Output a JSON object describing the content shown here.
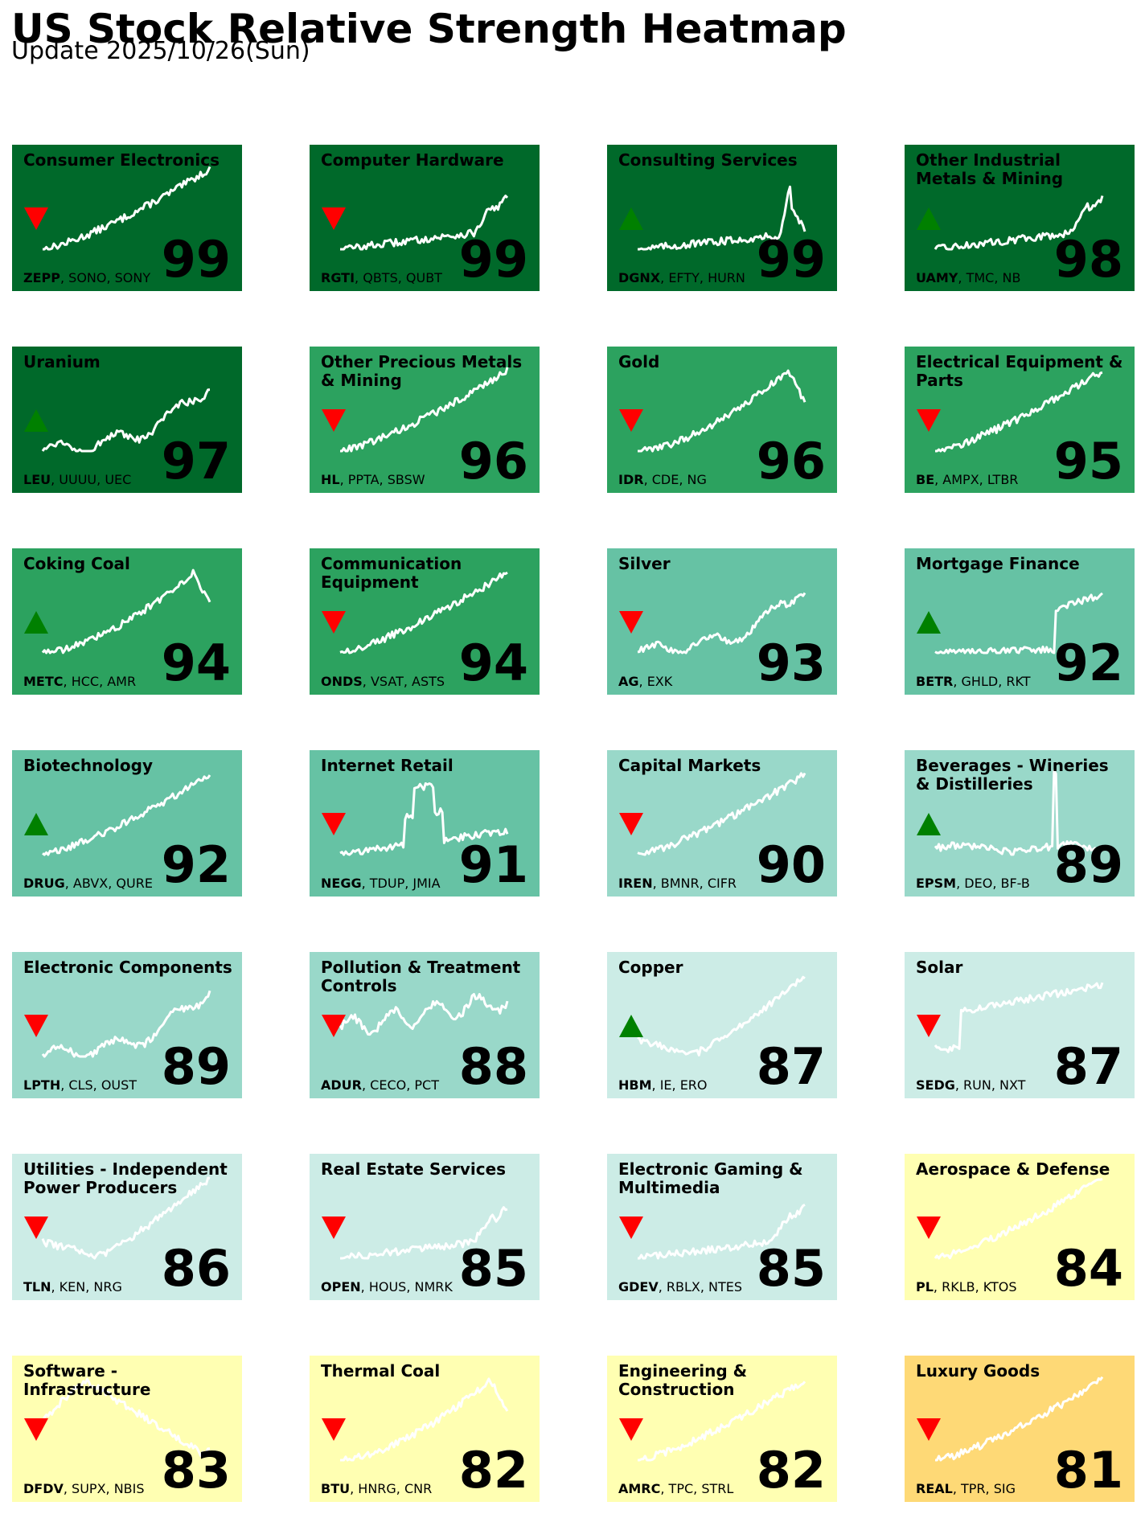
{
  "header": {
    "title": "US Stock Relative Strength Heatmap",
    "subtitle": "Update 2025/10/26(Sun)"
  },
  "colors": {
    "dark_green": "#00692a",
    "green": "#2ca25f",
    "teal": "#66c2a4",
    "light_teal": "#99d8c9",
    "pale_teal": "#ccece6",
    "pale_yellow": "#ffffb2",
    "orange": "#fed976",
    "up_arrow": "#008000",
    "down_arrow": "#ff0000",
    "sparkline": "#ffffff"
  },
  "chart_data": {
    "type": "heatmap",
    "tiles": [
      {
        "name": "Consumer Electronics",
        "score": 99,
        "trend": "down",
        "tickers": [
          "ZEPP",
          "SONO",
          "SONY"
        ],
        "color": "#00692a",
        "shape": "steady"
      },
      {
        "name": "Computer Hardware",
        "score": 99,
        "trend": "down",
        "tickers": [
          "RGTI",
          "QBTS",
          "QUBT"
        ],
        "color": "#00692a",
        "shape": "late_spike"
      },
      {
        "name": "Consulting Services",
        "score": 99,
        "trend": "up",
        "tickers": [
          "DGNX",
          "EFTY",
          "HURN"
        ],
        "color": "#00692a",
        "shape": "spike_drop"
      },
      {
        "name": "Other Industrial Metals & Mining",
        "score": 98,
        "trend": "up",
        "tickers": [
          "UAMY",
          "TMC",
          "NB"
        ],
        "color": "#00692a",
        "shape": "late_spike"
      },
      {
        "name": "Uranium",
        "score": 97,
        "trend": "up",
        "tickers": [
          "LEU",
          "UUUU",
          "UEC"
        ],
        "color": "#00692a",
        "shape": "wavy_rise"
      },
      {
        "name": "Other Precious Metals & Mining",
        "score": 96,
        "trend": "down",
        "tickers": [
          "HL",
          "PPTA",
          "SBSW"
        ],
        "color": "#2ca25f",
        "shape": "steady"
      },
      {
        "name": "Gold",
        "score": 96,
        "trend": "down",
        "tickers": [
          "IDR",
          "CDE",
          "NG"
        ],
        "color": "#2ca25f",
        "shape": "rise_drop"
      },
      {
        "name": "Electrical Equipment & Parts",
        "score": 95,
        "trend": "down",
        "tickers": [
          "BE",
          "AMPX",
          "LTBR"
        ],
        "color": "#2ca25f",
        "shape": "steady"
      },
      {
        "name": "Coking Coal",
        "score": 94,
        "trend": "up",
        "tickers": [
          "METC",
          "HCC",
          "AMR"
        ],
        "color": "#2ca25f",
        "shape": "rise_drop"
      },
      {
        "name": "Communication Equipment",
        "score": 94,
        "trend": "down",
        "tickers": [
          "ONDS",
          "VSAT",
          "ASTS"
        ],
        "color": "#2ca25f",
        "shape": "steady"
      },
      {
        "name": "Silver",
        "score": 93,
        "trend": "down",
        "tickers": [
          "AG",
          "EXK"
        ],
        "color": "#66c2a4",
        "shape": "wavy_rise"
      },
      {
        "name": "Mortgage Finance",
        "score": 92,
        "trend": "up",
        "tickers": [
          "BETR",
          "GHLD",
          "RKT"
        ],
        "color": "#66c2a4",
        "shape": "late_step"
      },
      {
        "name": "Biotechnology",
        "score": 92,
        "trend": "up",
        "tickers": [
          "DRUG",
          "ABVX",
          "QURE"
        ],
        "color": "#66c2a4",
        "shape": "steady"
      },
      {
        "name": "Internet Retail",
        "score": 91,
        "trend": "down",
        "tickers": [
          "NEGG",
          "TDUP",
          "JMIA"
        ],
        "color": "#66c2a4",
        "shape": "mid_spike"
      },
      {
        "name": "Capital Markets",
        "score": 90,
        "trend": "down",
        "tickers": [
          "IREN",
          "BMNR",
          "CIFR"
        ],
        "color": "#99d8c9",
        "shape": "steady"
      },
      {
        "name": "Beverages - Wineries & Distilleries",
        "score": 89,
        "trend": "up",
        "tickers": [
          "EPSM",
          "DEO",
          "BF-B"
        ],
        "color": "#99d8c9",
        "shape": "one_spike"
      },
      {
        "name": "Electronic Components",
        "score": 89,
        "trend": "down",
        "tickers": [
          "LPTH",
          "CLS",
          "OUST"
        ],
        "color": "#99d8c9",
        "shape": "wavy_rise"
      },
      {
        "name": "Pollution & Treatment Controls",
        "score": 88,
        "trend": "down",
        "tickers": [
          "ADUR",
          "CECO",
          "PCT"
        ],
        "color": "#99d8c9",
        "shape": "choppy"
      },
      {
        "name": "Copper",
        "score": 87,
        "trend": "up",
        "tickers": [
          "HBM",
          "IE",
          "ERO"
        ],
        "color": "#ccece6",
        "shape": "dip_rise"
      },
      {
        "name": "Solar",
        "score": 87,
        "trend": "down",
        "tickers": [
          "SEDG",
          "RUN",
          "NXT"
        ],
        "color": "#ccece6",
        "shape": "early_jump"
      },
      {
        "name": "Utilities - Independent Power Producers",
        "score": 86,
        "trend": "down",
        "tickers": [
          "TLN",
          "KEN",
          "NRG"
        ],
        "color": "#ccece6",
        "shape": "dip_rise"
      },
      {
        "name": "Real Estate Services",
        "score": 85,
        "trend": "down",
        "tickers": [
          "OPEN",
          "HOUS",
          "NMRK"
        ],
        "color": "#ccece6",
        "shape": "late_spike"
      },
      {
        "name": "Electronic Gaming & Multimedia",
        "score": 85,
        "trend": "down",
        "tickers": [
          "GDEV",
          "RBLX",
          "NTES"
        ],
        "color": "#ccece6",
        "shape": "late_spike"
      },
      {
        "name": "Aerospace & Defense",
        "score": 84,
        "trend": "down",
        "tickers": [
          "PL",
          "RKLB",
          "KTOS"
        ],
        "color": "#ffffb2",
        "shape": "steady"
      },
      {
        "name": "Software - Infrastructure",
        "score": 83,
        "trend": "down",
        "tickers": [
          "DFDV",
          "SUPX",
          "NBIS"
        ],
        "color": "#ffffb2",
        "shape": "early_peak"
      },
      {
        "name": "Thermal Coal",
        "score": 82,
        "trend": "down",
        "tickers": [
          "BTU",
          "HNRG",
          "CNR"
        ],
        "color": "#ffffb2",
        "shape": "rise_drop"
      },
      {
        "name": "Engineering & Construction",
        "score": 82,
        "trend": "down",
        "tickers": [
          "AMRC",
          "TPC",
          "STRL"
        ],
        "color": "#ffffb2",
        "shape": "steady"
      },
      {
        "name": "Luxury Goods",
        "score": 81,
        "trend": "down",
        "tickers": [
          "REAL",
          "TPR",
          "SIG"
        ],
        "color": "#fed976",
        "shape": "steady"
      }
    ]
  }
}
